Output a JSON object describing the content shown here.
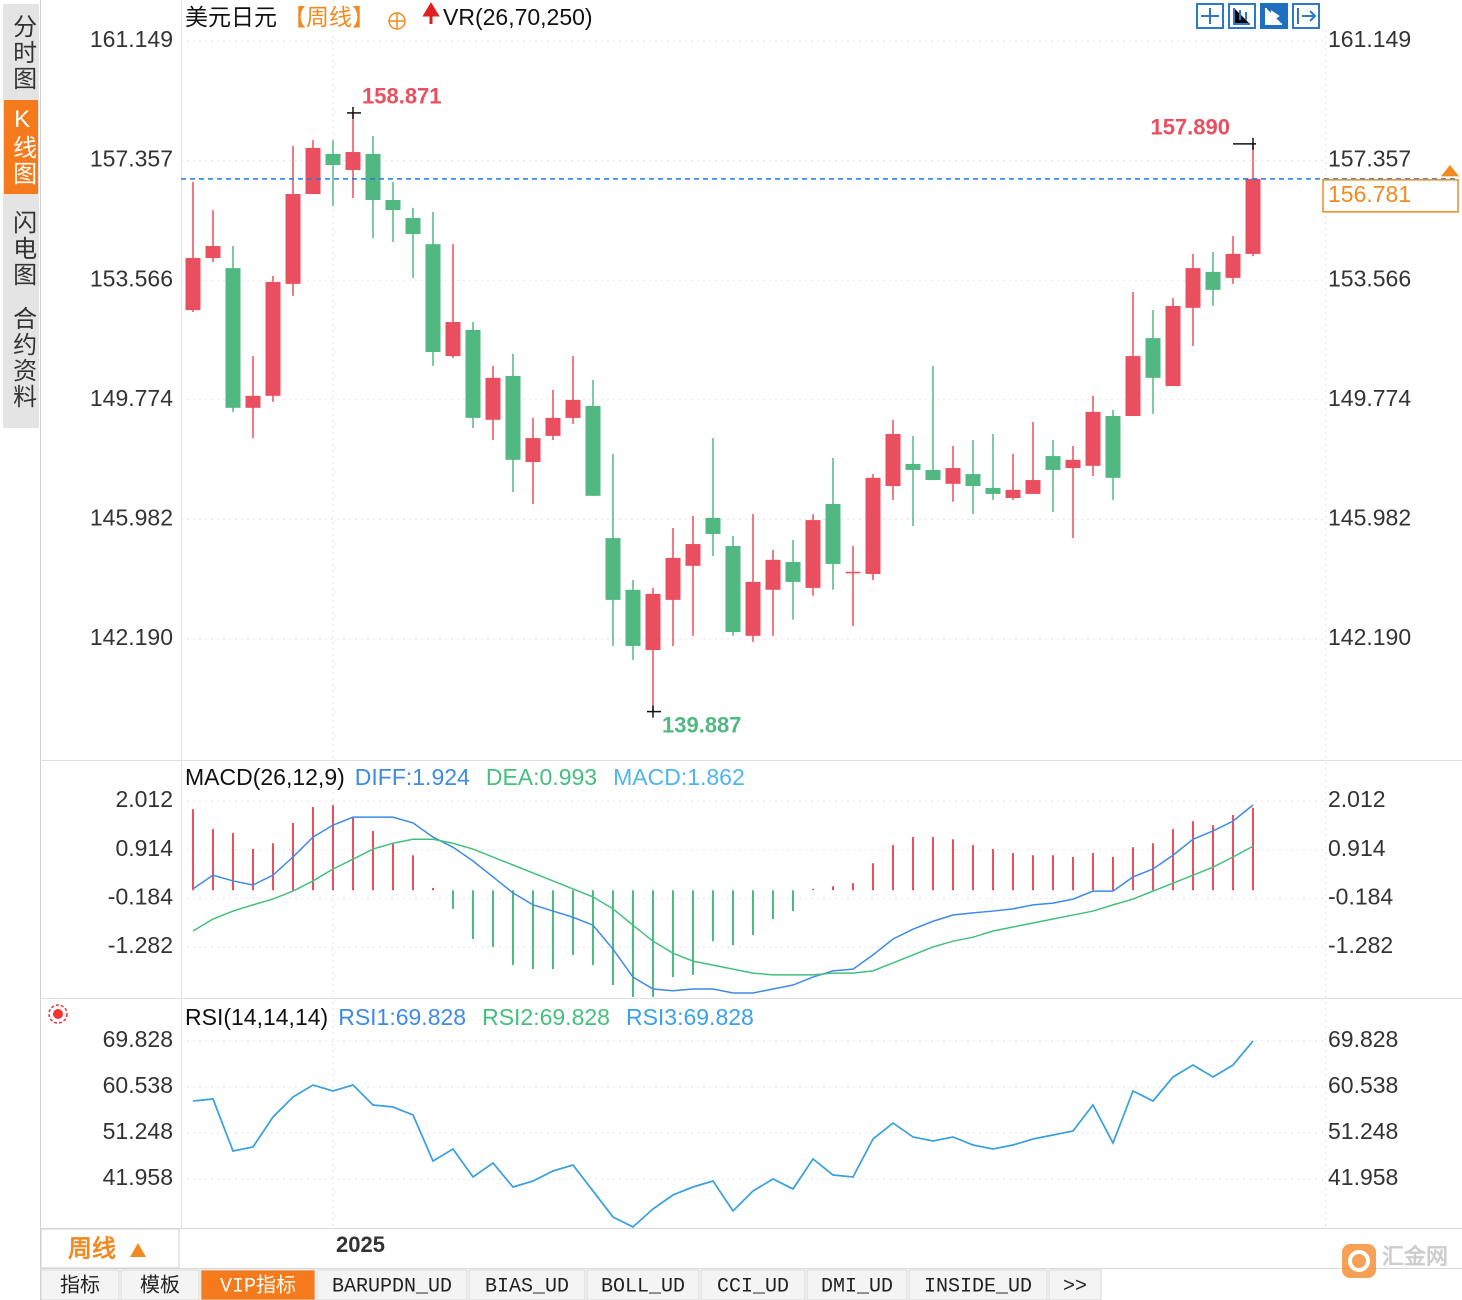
{
  "nav_tabs": [
    "分时图",
    "K线图",
    "闪电图",
    "合约资料"
  ],
  "nav_active": 1,
  "period_button": "周线",
  "indicator_tabs": [
    "指标",
    "模板",
    "VIP指标",
    "BARUPDN_UD",
    "BIAS_UD",
    "BOLL_UD",
    "CCI_UD",
    "DMI_UD",
    "INSIDE_UD",
    ">>"
  ],
  "indicator_active": 2,
  "watermark": "汇金网",
  "chart_data": [
    {
      "type": "candlestick",
      "title": "美元日元",
      "period": "【周线】",
      "indicator": "VR(26,70,250)",
      "categories": [
        null,
        null,
        null,
        null,
        null,
        null,
        null,
        "2025",
        null,
        null,
        null,
        null,
        null,
        null,
        null,
        null,
        null,
        null,
        null,
        null,
        null,
        null,
        null,
        null,
        null,
        null,
        null,
        null,
        null,
        null,
        null,
        null,
        null,
        null,
        null,
        null,
        null,
        null,
        null,
        null,
        null,
        null,
        null,
        null,
        null,
        null,
        null,
        null,
        null,
        null,
        null,
        null,
        null,
        null
      ],
      "open": [
        152.62,
        154.27,
        153.95,
        149.52,
        149.9,
        153.45,
        156.3,
        157.57,
        157.06,
        157.57,
        156.11,
        155.54,
        154.71,
        151.16,
        151.99,
        149.14,
        150.53,
        147.8,
        148.63,
        149.2,
        149.58,
        145.39,
        143.75,
        141.84,
        143.43,
        144.51,
        146.03,
        145.14,
        142.29,
        143.75,
        144.63,
        143.81,
        146.47,
        144.32,
        144.25,
        147.04,
        147.74,
        147.55,
        147.11,
        147.42,
        146.98,
        146.66,
        146.79,
        147.99,
        147.61,
        147.68,
        149.26,
        149.26,
        151.73,
        150.21,
        152.69,
        153.83,
        153.64,
        154.4
      ],
      "high": [
        156.68,
        155.79,
        154.65,
        151.16,
        153.7,
        157.82,
        158.01,
        158.01,
        158.871,
        158.14,
        156.68,
        155.86,
        155.73,
        154.71,
        152.24,
        150.85,
        151.23,
        149.2,
        150.09,
        151.16,
        150.4,
        148.06,
        144.06,
        143.81,
        145.71,
        146.09,
        148.56,
        145.46,
        146.15,
        145.01,
        145.33,
        146.15,
        147.93,
        145.14,
        147.42,
        149.14,
        148.63,
        150.85,
        148.31,
        148.5,
        148.69,
        148.06,
        149.07,
        148.5,
        148.31,
        149.9,
        149.45,
        153.19,
        152.62,
        153.0,
        154.4,
        154.46,
        154.97,
        157.89
      ],
      "low": [
        152.56,
        154.14,
        149.39,
        148.56,
        149.71,
        153.07,
        156.3,
        155.92,
        156.17,
        154.9,
        154.78,
        153.64,
        150.85,
        151.1,
        148.88,
        148.5,
        146.85,
        146.47,
        148.5,
        149.01,
        146.73,
        141.97,
        141.53,
        139.887,
        141.97,
        142.29,
        144.82,
        142.29,
        142.1,
        142.29,
        142.8,
        143.56,
        143.75,
        142.6,
        144.06,
        146.6,
        145.77,
        147.23,
        146.54,
        146.15,
        146.6,
        146.6,
        146.79,
        146.22,
        145.39,
        147.36,
        146.6,
        149.26,
        149.33,
        150.21,
        151.48,
        152.75,
        153.45,
        154.33
      ],
      "close": [
        154.27,
        154.65,
        149.52,
        149.9,
        153.51,
        156.3,
        157.76,
        157.22,
        157.63,
        156.11,
        155.79,
        155.03,
        151.29,
        152.24,
        149.2,
        150.47,
        147.87,
        148.56,
        149.2,
        149.77,
        146.73,
        143.43,
        141.97,
        143.62,
        144.76,
        145.2,
        145.52,
        142.41,
        144.0,
        144.7,
        144.0,
        145.96,
        144.57,
        144.32,
        147.3,
        148.69,
        147.55,
        147.23,
        147.61,
        147.04,
        146.79,
        146.92,
        147.23,
        147.55,
        147.87,
        149.39,
        147.3,
        151.16,
        150.47,
        152.75,
        153.95,
        153.26,
        154.4,
        156.781
      ],
      "value_labels": {
        "high": {
          "8": "158.871",
          "53": "157.890"
        },
        "low": {
          "23": "139.887"
        }
      },
      "up_color": "#ea4f5f",
      "down_color": "#52b882",
      "last_price_color": "#f08a1f",
      "ylim": [
        138.67,
        161.5
      ],
      "yticks": [
        161.149,
        157.357,
        153.566,
        149.774,
        145.982,
        {
          "value": 142.19,
          "label": "142.190"
        }
      ],
      "grid": true
    },
    {
      "type": "macd",
      "title": "MACD(26,12,9)",
      "ylim": [
        -2.41,
        2.15
      ],
      "yticks": [
        2.012,
        0.914,
        -0.184,
        -1.282
      ],
      "up_color": "#e8505e",
      "down_color": "#4cbb7f",
      "series": [
        {
          "name": "DIFF:1.924",
          "color": "#3d8be6",
          "values": [
            0.03,
            0.34,
            0.21,
            0.12,
            0.34,
            0.75,
            1.2,
            1.47,
            1.65,
            1.65,
            1.65,
            1.52,
            1.2,
            0.97,
            0.66,
            0.3,
            -0.06,
            -0.33,
            -0.47,
            -0.61,
            -0.79,
            -1.33,
            -1.96,
            -2.23,
            -2.27,
            -2.23,
            -2.23,
            -2.32,
            -2.32,
            -2.23,
            -2.14,
            -1.96,
            -1.82,
            -1.78,
            -1.46,
            -1.1,
            -0.88,
            -0.7,
            -0.56,
            -0.51,
            -0.47,
            -0.42,
            -0.33,
            -0.29,
            -0.2,
            -0.02,
            -0.02,
            0.3,
            0.48,
            0.79,
            1.15,
            1.34,
            1.56,
            1.924
          ]
        },
        {
          "name": "DEA:0.993",
          "color": "#45bf7c",
          "values": [
            -0.92,
            -0.65,
            -0.47,
            -0.33,
            -0.2,
            -0.02,
            0.21,
            0.48,
            0.7,
            0.93,
            1.06,
            1.15,
            1.15,
            1.06,
            0.93,
            0.75,
            0.57,
            0.39,
            0.21,
            0.03,
            -0.15,
            -0.42,
            -0.79,
            -1.15,
            -1.42,
            -1.6,
            -1.69,
            -1.78,
            -1.87,
            -1.91,
            -1.91,
            -1.91,
            -1.87,
            -1.87,
            -1.82,
            -1.64,
            -1.46,
            -1.28,
            -1.15,
            -1.06,
            -0.92,
            -0.83,
            -0.74,
            -0.65,
            -0.56,
            -0.47,
            -0.33,
            -0.2,
            -0.02,
            0.16,
            0.34,
            0.52,
            0.75,
            0.993
          ]
        },
        {
          "name": "MACD:1.862",
          "color": "#4fb4ef",
          "histogram": true,
          "values": [
            1.83,
            1.38,
            1.29,
            0.93,
            1.06,
            1.52,
            1.88,
            1.92,
            1.65,
            1.34,
            1.06,
            0.79,
            0.05,
            -0.42,
            -1.1,
            -1.28,
            -1.69,
            -1.78,
            -1.78,
            -1.46,
            -1.69,
            -2.14,
            -2.41,
            -2.41,
            -1.96,
            -1.91,
            -1.15,
            -1.24,
            -1.01,
            -0.65,
            -0.47,
            0.03,
            0.09,
            0.16,
            0.61,
            1.02,
            1.2,
            1.2,
            1.15,
            1.02,
            0.93,
            0.84,
            0.79,
            0.79,
            0.75,
            0.84,
            0.75,
            0.97,
            1.06,
            1.38,
            1.56,
            1.47,
            1.7,
            1.862
          ]
        }
      ]
    },
    {
      "type": "line",
      "title": "RSI(14,14,14)",
      "ylim": [
        32.07,
        71.04
      ],
      "yticks": [
        69.828,
        60.538,
        51.248,
        41.958
      ],
      "series": [
        {
          "name": "RSI1:69.828",
          "color": "#3d8be6",
          "values": [
            57.71,
            58.12,
            47.62,
            48.43,
            54.48,
            58.52,
            60.94,
            59.73,
            60.94,
            56.91,
            56.5,
            54.89,
            45.6,
            48.02,
            42.37,
            45.2,
            40.35,
            41.56,
            43.58,
            44.79,
            39.54,
            34.29,
            32.28,
            35.91,
            38.74,
            40.35,
            41.56,
            35.51,
            39.54,
            41.97,
            39.95,
            46.01,
            42.77,
            42.37,
            50.04,
            53.27,
            50.45,
            49.64,
            50.45,
            48.83,
            48.02,
            48.83,
            50.04,
            50.85,
            51.66,
            56.91,
            49.23,
            59.73,
            57.71,
            62.56,
            64.98,
            62.56,
            64.98,
            69.828
          ]
        },
        {
          "name": "RSI2:69.828",
          "color": "#45bf7c",
          "values": [
            57.71,
            58.12,
            47.62,
            48.43,
            54.48,
            58.52,
            60.94,
            59.73,
            60.94,
            56.91,
            56.5,
            54.89,
            45.6,
            48.02,
            42.37,
            45.2,
            40.35,
            41.56,
            43.58,
            44.79,
            39.54,
            34.29,
            32.28,
            35.91,
            38.74,
            40.35,
            41.56,
            35.51,
            39.54,
            41.97,
            39.95,
            46.01,
            42.77,
            42.37,
            50.04,
            53.27,
            50.45,
            49.64,
            50.45,
            48.83,
            48.02,
            48.83,
            50.04,
            50.85,
            51.66,
            56.91,
            49.23,
            59.73,
            57.71,
            62.56,
            64.98,
            62.56,
            64.98,
            69.828
          ]
        },
        {
          "name": "RSI3:69.828",
          "color": "#3aa0e8",
          "values": [
            57.71,
            58.12,
            47.62,
            48.43,
            54.48,
            58.52,
            60.94,
            59.73,
            60.94,
            56.91,
            56.5,
            54.89,
            45.6,
            48.02,
            42.37,
            45.2,
            40.35,
            41.56,
            43.58,
            44.79,
            39.54,
            34.29,
            32.28,
            35.91,
            38.74,
            40.35,
            41.56,
            35.51,
            39.54,
            41.97,
            39.95,
            46.01,
            42.77,
            42.37,
            50.04,
            53.27,
            50.45,
            49.64,
            50.45,
            48.83,
            48.02,
            48.83,
            50.04,
            50.85,
            51.66,
            56.91,
            49.23,
            59.73,
            57.71,
            62.56,
            64.98,
            62.56,
            64.98,
            69.828
          ]
        }
      ]
    }
  ]
}
